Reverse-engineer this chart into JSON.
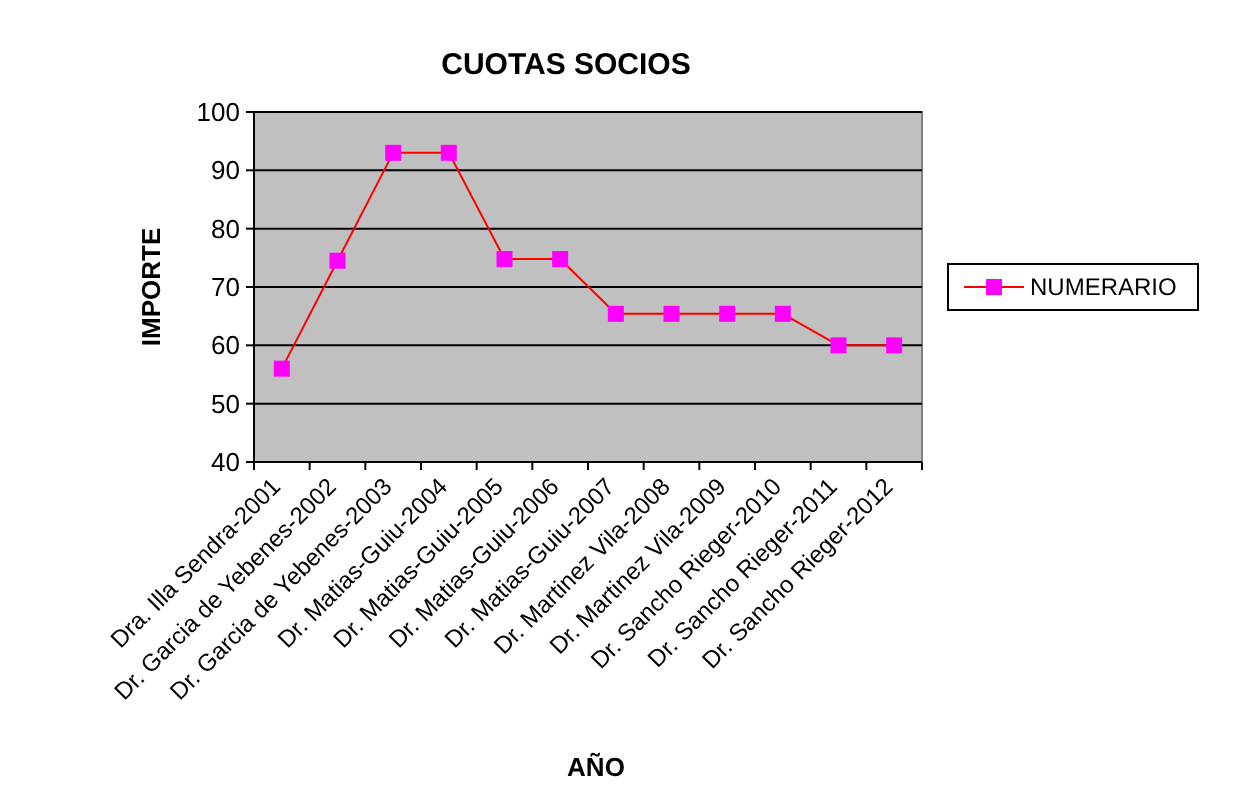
{
  "chart_data": {
    "type": "line",
    "title": "CUOTAS SOCIOS",
    "xlabel": "AÑO",
    "ylabel": "IMPORTE",
    "categories": [
      "Dra. Illa Sendra-2001",
      "Dr. Garcia de Yebenes-2002",
      "Dr. Garcia de Yebenes-2003",
      "Dr. Matias-Guiu-2004",
      "Dr. Matias-Guiu-2005",
      "Dr. Matias-Guiu-2006",
      "Dr. Matias-Guiu-2007",
      "Dr. Martinez Vila-2008",
      "Dr. Martinez Vila-2009",
      "Dr. Sancho Rieger-2010",
      "Dr. Sancho Rieger-2011",
      "Dr. Sancho Rieger-2012"
    ],
    "series": [
      {
        "name": "NUMERARIO",
        "color": "#ff0000",
        "colors": [
          "#ff00ff",
          "#ff00ff",
          "#ff00ff",
          "#ff00ff",
          "#ff00ff",
          "#ff00ff",
          "#ff00ff",
          "#ff00ff",
          "#ff00ff",
          "#ff00ff",
          "#ff00ff",
          "#ff00ff"
        ],
        "values": [
          56,
          74.5,
          93,
          93,
          74.8,
          74.8,
          65.4,
          65.4,
          65.4,
          65.4,
          60,
          60
        ]
      }
    ],
    "ylim": [
      40,
      100
    ],
    "yticks": [
      40,
      50,
      60,
      70,
      80,
      90,
      100
    ],
    "grid": "y",
    "legend": "right",
    "marker": "square",
    "line_style": "solid"
  }
}
